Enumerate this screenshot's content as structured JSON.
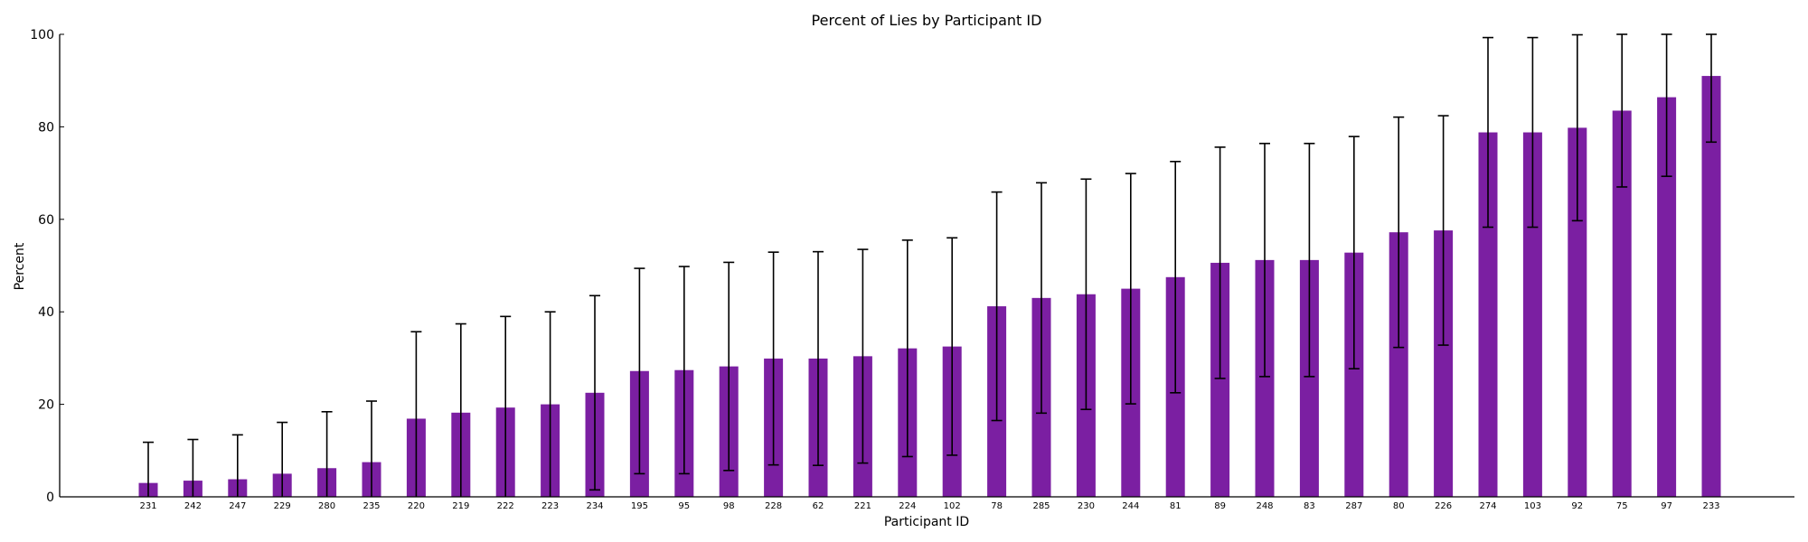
{
  "chart_data": {
    "type": "bar",
    "title": "Percent of Lies by Participant ID",
    "xlabel": "Participant ID",
    "ylabel": "Percent",
    "ylim": [
      0,
      100
    ],
    "yticks": [
      0,
      20,
      40,
      60,
      80,
      100
    ],
    "grid": false,
    "bar_color": "#7b1fa2",
    "categories": [
      "231",
      "242",
      "247",
      "229",
      "280",
      "235",
      "220",
      "219",
      "222",
      "223",
      "234",
      "195",
      "95",
      "98",
      "228",
      "62",
      "221",
      "224",
      "102",
      "78",
      "285",
      "230",
      "244",
      "81",
      "89",
      "248",
      "83",
      "287",
      "80",
      "226",
      "274",
      "103",
      "92",
      "75",
      "97",
      "233"
    ],
    "series": [
      {
        "values": [
          3.0,
          3.5,
          3.8,
          5.0,
          6.2,
          7.5,
          16.9,
          18.2,
          19.3,
          20.0,
          22.5,
          27.2,
          27.4,
          28.2,
          29.9,
          29.9,
          30.4,
          32.1,
          32.5,
          41.2,
          43.0,
          43.8,
          45.0,
          47.5,
          50.6,
          51.2,
          51.2,
          52.8,
          57.2,
          57.6,
          78.8,
          78.8,
          79.8,
          83.5,
          86.4,
          91.0
        ],
        "error": [
          8.8,
          8.9,
          9.6,
          11.1,
          12.2,
          13.2,
          18.8,
          19.2,
          19.7,
          20.0,
          21.0,
          22.2,
          22.4,
          22.5,
          23.0,
          23.1,
          23.1,
          23.4,
          23.5,
          24.7,
          24.9,
          24.9,
          24.9,
          25.0,
          25.0,
          25.2,
          25.2,
          25.1,
          24.9,
          24.8,
          20.5,
          20.5,
          20.1,
          16.5,
          17.1,
          14.3
        ]
      }
    ]
  }
}
